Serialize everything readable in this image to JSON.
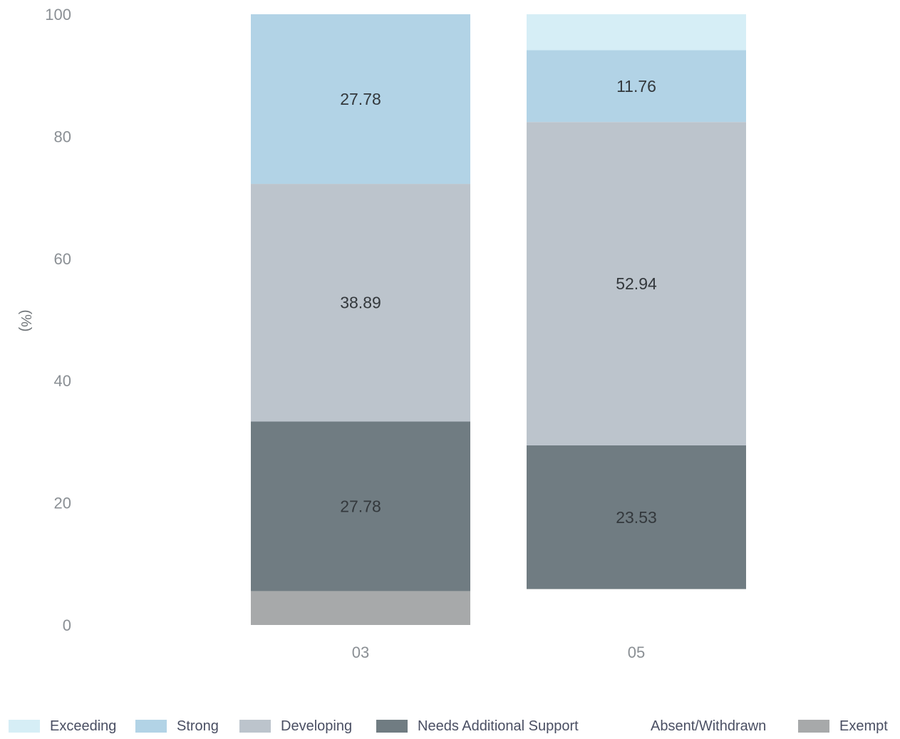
{
  "chart_data": {
    "type": "bar",
    "stacked": true,
    "ylabel": "(%)",
    "ylim": [
      0,
      100
    ],
    "yticks": [
      "0",
      "20",
      "40",
      "60",
      "80",
      "100"
    ],
    "categories": [
      "03",
      "05"
    ],
    "series": [
      {
        "name": "Exempt",
        "color": "#a7a9aa",
        "values": [
          5.55,
          0
        ],
        "labels": [
          "",
          ""
        ]
      },
      {
        "name": "Absent/Withdrawn",
        "color": "#ffffff",
        "values": [
          0,
          5.88
        ],
        "labels": [
          "",
          ""
        ]
      },
      {
        "name": "Needs Additional Support",
        "color": "#707c82",
        "values": [
          27.78,
          23.53
        ],
        "labels": [
          "27.78",
          "23.53"
        ]
      },
      {
        "name": "Developing",
        "color": "#bcc4cc",
        "values": [
          38.89,
          52.94
        ],
        "labels": [
          "38.89",
          "52.94"
        ]
      },
      {
        "name": "Strong",
        "color": "#b2d3e6",
        "values": [
          27.78,
          11.76
        ],
        "labels": [
          "27.78",
          "11.76"
        ]
      },
      {
        "name": "Exceeding",
        "color": "#d6eef6",
        "values": [
          0,
          5.89
        ],
        "labels": [
          "",
          ""
        ]
      }
    ],
    "legend": {
      "position": "bottom",
      "items": [
        {
          "name": "Exceeding",
          "color": "#d6eef6"
        },
        {
          "name": "Strong",
          "color": "#b2d3e6"
        },
        {
          "name": "Developing",
          "color": "#bcc4cc"
        },
        {
          "name": "Needs Additional Support",
          "color": "#707c82"
        },
        {
          "name": "Absent/Withdrawn",
          "color": "#ffffff"
        },
        {
          "name": "Exempt",
          "color": "#a7a9aa"
        }
      ]
    },
    "grid": false
  }
}
